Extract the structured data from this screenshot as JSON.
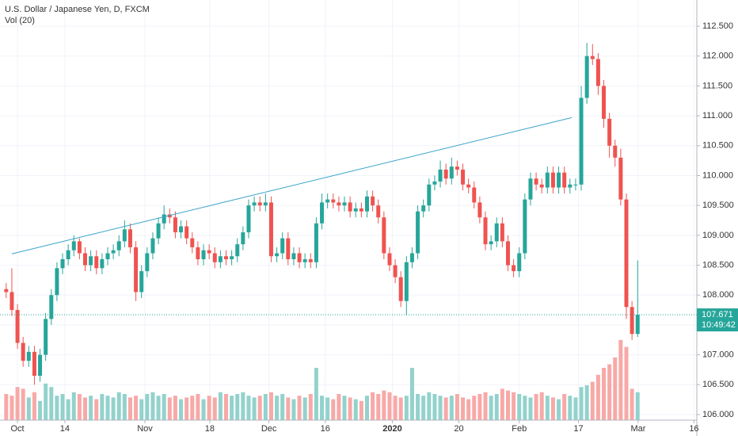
{
  "chart_data": {
    "type": "candlestick",
    "title": "U.S. Dollar / Japanese Yen, D, FXCM",
    "subtitle": "Vol (20)",
    "colors": {
      "up": "#26a69a",
      "down": "#ef5350",
      "up_volume": "#93d2cc",
      "down_volume": "#f7a9a7",
      "trend_line": "#3aa3c9"
    },
    "open": [
      108.1,
      108.05,
      107.75,
      107.2,
      106.9,
      107.05,
      106.65,
      107.0,
      107.6,
      108.0,
      108.45,
      108.6,
      108.75,
      108.9,
      108.7,
      108.5,
      108.65,
      108.45,
      108.6,
      108.7,
      108.75,
      108.9,
      109.1,
      108.8,
      108.05,
      108.4,
      108.7,
      108.95,
      109.2,
      109.35,
      109.3,
      109.05,
      109.15,
      108.95,
      108.8,
      108.6,
      108.75,
      108.7,
      108.55,
      108.65,
      108.6,
      108.65,
      108.85,
      109.05,
      109.5,
      109.55,
      109.5,
      109.55,
      108.65,
      108.7,
      108.95,
      108.6,
      108.7,
      108.55,
      108.6,
      108.55,
      109.2,
      109.55,
      109.6,
      109.55,
      109.5,
      109.55,
      109.4,
      109.45,
      109.4,
      109.65,
      109.5,
      109.3,
      108.7,
      108.5,
      108.3,
      107.9,
      108.55,
      108.7,
      109.4,
      109.5,
      109.85,
      109.9,
      110.1,
      109.95,
      110.15,
      110.1,
      109.85,
      109.8,
      109.55,
      109.3,
      108.85,
      108.9,
      109.2,
      108.9,
      108.5,
      108.4,
      108.7,
      109.6,
      109.95,
      109.85,
      109.8,
      110.05,
      109.8,
      110.05,
      109.8,
      109.85,
      109.85,
      111.3,
      112.0,
      111.95,
      111.5,
      110.95,
      110.5,
      110.3,
      109.6,
      107.8,
      107.35
    ],
    "high": [
      108.2,
      108.45,
      107.85,
      107.3,
      107.15,
      107.15,
      107.1,
      107.7,
      108.1,
      108.55,
      108.7,
      108.85,
      109.0,
      108.95,
      108.8,
      108.75,
      108.75,
      108.7,
      108.8,
      108.85,
      109.0,
      109.25,
      109.2,
      108.9,
      108.5,
      108.8,
      109.05,
      109.3,
      109.5,
      109.45,
      109.4,
      109.25,
      109.25,
      109.05,
      108.9,
      108.85,
      108.85,
      108.8,
      108.75,
      108.75,
      108.75,
      108.95,
      109.15,
      109.6,
      109.65,
      109.65,
      109.7,
      109.65,
      108.8,
      109.05,
      109.05,
      108.8,
      108.8,
      108.7,
      108.7,
      109.3,
      109.7,
      109.7,
      109.7,
      109.65,
      109.65,
      109.65,
      109.55,
      109.55,
      109.75,
      109.75,
      109.6,
      109.4,
      108.8,
      108.6,
      108.4,
      108.65,
      108.8,
      109.5,
      109.6,
      109.95,
      110.0,
      110.25,
      110.2,
      110.3,
      110.25,
      110.2,
      109.95,
      109.9,
      109.65,
      109.4,
      109.0,
      109.3,
      109.3,
      109.0,
      108.6,
      108.8,
      109.7,
      110.05,
      110.05,
      109.95,
      110.15,
      110.15,
      110.15,
      110.15,
      109.95,
      109.95,
      111.5,
      112.22,
      112.2,
      112.05,
      111.6,
      111.05,
      110.6,
      110.45,
      109.7,
      107.9,
      108.58
    ],
    "low": [
      107.95,
      107.65,
      107.1,
      106.8,
      106.8,
      106.5,
      106.55,
      106.9,
      107.5,
      107.9,
      108.35,
      108.5,
      108.65,
      108.6,
      108.4,
      108.4,
      108.35,
      108.35,
      108.5,
      108.6,
      108.65,
      108.8,
      108.7,
      107.9,
      107.95,
      108.3,
      108.6,
      108.85,
      109.1,
      109.2,
      108.95,
      108.95,
      108.85,
      108.7,
      108.5,
      108.5,
      108.6,
      108.45,
      108.45,
      108.5,
      108.5,
      108.55,
      108.75,
      108.95,
      109.4,
      109.4,
      109.4,
      108.55,
      108.55,
      108.6,
      108.5,
      108.5,
      108.45,
      108.45,
      108.45,
      108.45,
      109.1,
      109.45,
      109.45,
      109.4,
      109.4,
      109.3,
      109.3,
      109.3,
      109.3,
      109.4,
      109.2,
      108.6,
      108.4,
      108.2,
      107.8,
      107.66,
      108.45,
      108.6,
      109.3,
      109.4,
      109.75,
      109.8,
      109.85,
      109.85,
      110.0,
      109.75,
      109.7,
      109.45,
      109.2,
      108.75,
      108.75,
      108.8,
      108.8,
      108.4,
      108.3,
      108.3,
      108.6,
      109.5,
      109.75,
      109.7,
      109.7,
      109.7,
      109.7,
      109.7,
      109.7,
      109.75,
      109.75,
      111.2,
      111.85,
      111.35,
      110.8,
      110.3,
      110.15,
      109.5,
      107.6,
      107.25,
      107.3
    ],
    "close": [
      108.05,
      107.75,
      107.2,
      106.9,
      107.05,
      106.65,
      107.0,
      107.6,
      108.0,
      108.45,
      108.6,
      108.75,
      108.9,
      108.7,
      108.5,
      108.65,
      108.45,
      108.6,
      108.7,
      108.75,
      108.9,
      109.1,
      108.8,
      108.05,
      108.4,
      108.7,
      108.95,
      109.2,
      109.35,
      109.3,
      109.05,
      109.15,
      108.95,
      108.8,
      108.6,
      108.75,
      108.7,
      108.55,
      108.65,
      108.6,
      108.65,
      108.85,
      109.05,
      109.5,
      109.55,
      109.5,
      109.55,
      108.65,
      108.7,
      108.95,
      108.6,
      108.7,
      108.55,
      108.6,
      108.55,
      109.2,
      109.55,
      109.6,
      109.55,
      109.5,
      109.55,
      109.4,
      109.45,
      109.4,
      109.65,
      109.5,
      109.3,
      108.7,
      108.5,
      108.3,
      107.9,
      108.55,
      108.7,
      109.4,
      109.5,
      109.85,
      109.9,
      110.1,
      109.95,
      110.15,
      110.1,
      109.85,
      109.8,
      109.55,
      109.3,
      108.85,
      108.9,
      109.2,
      108.9,
      108.5,
      108.4,
      108.7,
      109.6,
      109.95,
      109.85,
      109.8,
      110.05,
      109.8,
      110.05,
      109.8,
      109.85,
      109.85,
      111.3,
      112.0,
      111.95,
      111.5,
      110.95,
      110.5,
      110.3,
      109.6,
      107.8,
      107.35,
      107.67
    ],
    "volume": [
      75,
      70,
      95,
      90,
      65,
      80,
      55,
      105,
      95,
      70,
      75,
      60,
      80,
      75,
      65,
      70,
      60,
      75,
      70,
      65,
      80,
      75,
      65,
      70,
      60,
      75,
      80,
      70,
      75,
      65,
      70,
      60,
      65,
      70,
      75,
      60,
      70,
      65,
      80,
      75,
      70,
      75,
      80,
      70,
      65,
      70,
      75,
      80,
      70,
      75,
      65,
      60,
      70,
      65,
      75,
      150,
      70,
      65,
      60,
      75,
      70,
      65,
      60,
      55,
      70,
      80,
      75,
      85,
      80,
      70,
      65,
      70,
      150,
      75,
      70,
      80,
      75,
      70,
      65,
      70,
      75,
      65,
      60,
      70,
      75,
      80,
      70,
      75,
      90,
      85,
      80,
      75,
      70,
      65,
      75,
      80,
      70,
      65,
      60,
      75,
      70,
      65,
      95,
      100,
      110,
      130,
      150,
      160,
      180,
      230,
      210,
      90,
      80
    ],
    "xlim": [
      -1.1,
      122.5
    ],
    "ylim": [
      105.907,
      112.938
    ],
    "vlim": [
      0,
      250
    ],
    "xticks": [
      {
        "value": 2,
        "label": "Oct"
      },
      {
        "value": 10.4,
        "label": "14"
      },
      {
        "value": 24.6,
        "label": "Nov"
      },
      {
        "value": 36.1,
        "label": "18"
      },
      {
        "value": 46.6,
        "label": "Dec"
      },
      {
        "value": 56.6,
        "label": "16"
      },
      {
        "value": 68.5,
        "label": "2020"
      },
      {
        "value": 80.3,
        "label": "20"
      },
      {
        "value": 91,
        "label": "Feb"
      },
      {
        "value": 101.5,
        "label": "17"
      },
      {
        "value": 112.1,
        "label": "Mar"
      },
      {
        "value": 122,
        "label": "16"
      }
    ],
    "yticks": [
      {
        "value": 106,
        "label": "106.000"
      },
      {
        "value": 106.5,
        "label": "106.500"
      },
      {
        "value": 107,
        "label": "107.000"
      },
      {
        "value": 107.5,
        "label": "107.500"
      },
      {
        "value": 108,
        "label": "108.000"
      },
      {
        "value": 108.5,
        "label": "108.500"
      },
      {
        "value": 109,
        "label": "109.000"
      },
      {
        "value": 109.5,
        "label": "109.500"
      },
      {
        "value": 110,
        "label": "110.000"
      },
      {
        "value": 110.5,
        "label": "110.500"
      },
      {
        "value": 111,
        "label": "111.000"
      },
      {
        "value": 111.5,
        "label": "111.500"
      },
      {
        "value": 112,
        "label": "112.000"
      },
      {
        "value": 112.5,
        "label": "112.500"
      }
    ],
    "grid": true,
    "trend_line": {
      "from": [
        1,
        108.69
      ],
      "to": [
        100.3,
        110.97
      ]
    },
    "last_price": {
      "value": 107.671,
      "label": "107.671"
    },
    "countdown": "10:49:42"
  }
}
